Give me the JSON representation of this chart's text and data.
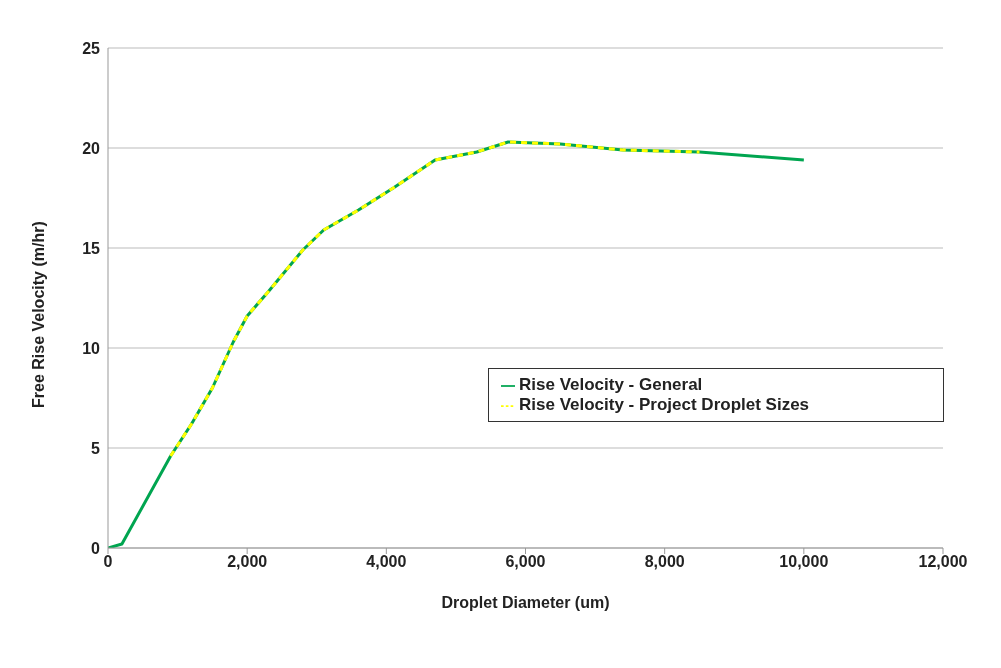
{
  "chart_data": {
    "type": "line",
    "xlabel": "Droplet Diameter (um)",
    "ylabel": "Free Rise Velocity (m/hr)",
    "xlim": [
      0,
      12000
    ],
    "xticks": [
      {
        "value": 0,
        "label": "0"
      },
      {
        "value": 2000,
        "label": "2,000"
      },
      {
        "value": 4000,
        "label": "4,000"
      },
      {
        "value": 6000,
        "label": "6,000"
      },
      {
        "value": 8000,
        "label": "8,000"
      },
      {
        "value": 10000,
        "label": "10,000"
      },
      {
        "value": 12000,
        "label": "12,000"
      }
    ],
    "ylim": [
      0,
      25
    ],
    "yticks": [
      0,
      5,
      10,
      15,
      20,
      25
    ],
    "grid": "y",
    "legend": "right",
    "marker": "none",
    "series": [
      {
        "name": "Rise Velocity - General",
        "color": "#00a550",
        "line_style": "solid",
        "x": [
          0,
          200,
          900,
          1200,
          1500,
          1800,
          2000,
          2300,
          2800,
          3100,
          3600,
          4100,
          4700,
          5300,
          5750,
          6500,
          7400,
          8500,
          10000
        ],
        "values": [
          0,
          0.2,
          4.6,
          6.2,
          8.0,
          10.3,
          11.6,
          12.8,
          14.9,
          15.9,
          16.9,
          18.0,
          19.4,
          19.8,
          20.3,
          20.2,
          19.9,
          19.8,
          19.4
        ]
      },
      {
        "name": "Rise Velocity - Project Droplet Sizes",
        "color": "#ffff00",
        "line_style": "dashed",
        "x": [
          900,
          1200,
          1500,
          1800,
          2000,
          2300,
          2800,
          3100,
          3600,
          4100,
          4700,
          5300,
          5750,
          6500,
          7400,
          8500
        ],
        "values": [
          4.6,
          6.2,
          8.0,
          10.3,
          11.6,
          12.8,
          14.9,
          15.9,
          16.9,
          18.0,
          19.4,
          19.8,
          20.3,
          20.2,
          19.9,
          19.8
        ]
      }
    ]
  }
}
